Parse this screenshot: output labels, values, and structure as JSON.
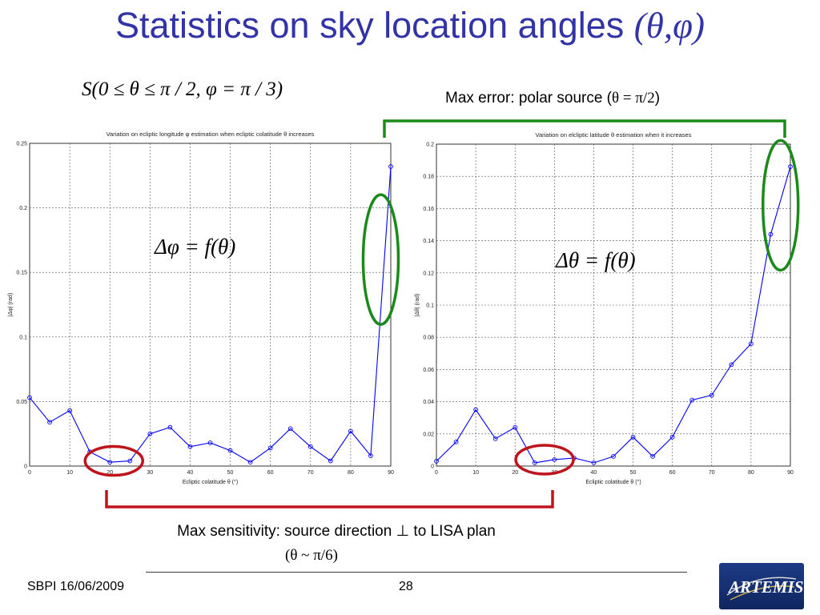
{
  "slide": {
    "title_text": "Statistics on sky location angles ",
    "title_greek": "(θ,φ)",
    "formula_s": "S(0 ≤ θ ≤ π / 2, φ = π / 3)",
    "max_error_prefix": "Max error: polar source (",
    "max_error_math": "θ = π/2",
    "max_error_suffix": ")",
    "max_sens_line1": "Max sensitivity: source direction ⊥ to LISA plan",
    "max_sens_line2": "(θ ~ π/6)",
    "footer_left": "SBPI 16/06/2009",
    "page_number": "28",
    "logo_text": "ARTEMIS"
  },
  "colors": {
    "title": "#3333a8",
    "series": "#0000ff",
    "green_marker": "#1a8a1a",
    "red_marker": "#c0141c",
    "logo_bg": "#1d3b85"
  },
  "chart_data": [
    {
      "type": "line",
      "title": "Variation on ecliptic longitude φ estimation when ecliptic colatitude θ increases",
      "xlabel": "Ecliptic colatitude θ (°)",
      "ylabel": "|Δφ| (rad)",
      "annotation": "Δφ = f(θ)",
      "xlim": [
        0,
        90
      ],
      "ylim": [
        0,
        0.25
      ],
      "xticks": [
        0,
        10,
        20,
        30,
        40,
        50,
        60,
        70,
        80,
        90
      ],
      "yticks": [
        0,
        0.05,
        0.1,
        0.15,
        0.2,
        0.25
      ],
      "ytick_labels": [
        "0",
        "0.05",
        "0.1",
        "0.15",
        "0.2",
        "0.25"
      ],
      "grid": true,
      "x": [
        0,
        5,
        10,
        15,
        20,
        25,
        30,
        35,
        40,
        45,
        50,
        55,
        60,
        65,
        70,
        75,
        80,
        85,
        90
      ],
      "series": [
        {
          "values": [
            0.053,
            0.034,
            0.043,
            0.011,
            0.003,
            0.004,
            0.025,
            0.03,
            0.015,
            0.018,
            0.012,
            0.003,
            0.014,
            0.029,
            0.015,
            0.004,
            0.027,
            0.008,
            0.232
          ]
        }
      ],
      "highlights": [
        {
          "color": "red",
          "x_center": 21,
          "y_center": 0.004
        },
        {
          "color": "green",
          "x_center": 87.5,
          "y_center": 0.16
        }
      ]
    },
    {
      "type": "line",
      "title": "Variation on elcliptic latitude θ estimation when it increases",
      "xlabel": "Ecliptic colatitude θ (°)",
      "ylabel": "|Δθ| (rad)",
      "annotation": "Δθ = f(θ)",
      "xlim": [
        0,
        90
      ],
      "ylim": [
        0,
        0.2
      ],
      "xticks": [
        0,
        10,
        20,
        30,
        40,
        50,
        60,
        70,
        80,
        90
      ],
      "yticks": [
        0,
        0.02,
        0.04,
        0.06,
        0.08,
        0.1,
        0.12,
        0.14,
        0.16,
        0.18,
        0.2
      ],
      "ytick_labels": [
        "0",
        "0.02",
        "0.04",
        "0.06",
        "0.08",
        "0.1",
        "0.12",
        "0.14",
        "0.16",
        "0.18",
        "0.2"
      ],
      "grid": true,
      "x": [
        0,
        5,
        10,
        15,
        20,
        25,
        30,
        35,
        40,
        45,
        50,
        55,
        60,
        65,
        70,
        75,
        80,
        85,
        90
      ],
      "series": [
        {
          "values": [
            0.003,
            0.015,
            0.035,
            0.017,
            0.024,
            0.002,
            0.004,
            0.005,
            0.002,
            0.006,
            0.018,
            0.006,
            0.018,
            0.041,
            0.044,
            0.063,
            0.076,
            0.144,
            0.186
          ]
        }
      ],
      "highlights": [
        {
          "color": "red",
          "x_center": 27.5,
          "y_center": 0.004
        },
        {
          "color": "green",
          "x_center": 87.5,
          "y_center": 0.162
        }
      ]
    }
  ]
}
